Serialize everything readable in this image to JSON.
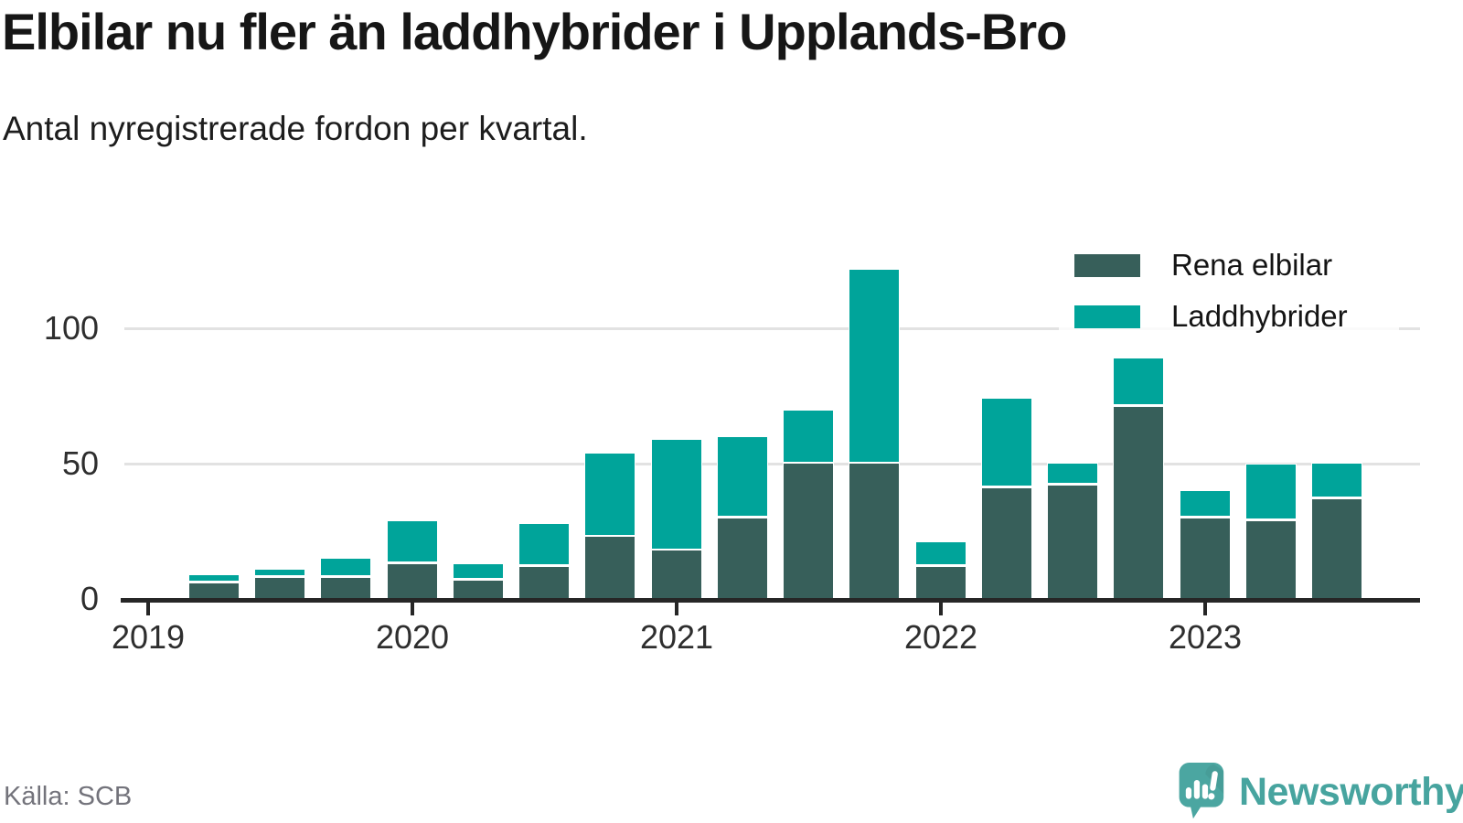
{
  "header": {
    "title": "Elbilar nu fler än laddhybrider i Upplands-Bro",
    "subtitle": "Antal nyregistrerade fordon per kvartal."
  },
  "legend": [
    {
      "label": "Rena elbilar",
      "color": "#375f5a"
    },
    {
      "label": "Laddhybrider",
      "color": "#00a49a"
    }
  ],
  "footer": {
    "source": "Källa: SCB",
    "brand": "Newsworthy"
  },
  "colors": {
    "elbilar": "#375f5a",
    "laddhybrider": "#00a49a",
    "axis": "#262626",
    "gridline": "#e2e2e2",
    "brand_teal": "#47a49f",
    "logo_bubble": "#4ba6a1"
  },
  "chart_data": {
    "type": "bar",
    "stacked": true,
    "title": "Elbilar nu fler än laddhybrider i Upplands-Bro",
    "subtitle": "Antal nyregistrerade fordon per kvartal.",
    "xlabel": "",
    "ylabel": "",
    "categories": [
      "2019 Q2",
      "2019 Q3",
      "2019 Q4",
      "2020 Q1",
      "2020 Q2",
      "2020 Q3",
      "2020 Q4",
      "2021 Q1",
      "2021 Q2",
      "2021 Q3",
      "2021 Q4",
      "2022 Q1",
      "2022 Q2",
      "2022 Q3",
      "2022 Q4",
      "2023 Q1",
      "2023 Q2",
      "2023 Q3"
    ],
    "series": [
      {
        "name": "Rena elbilar",
        "color": "#375f5a",
        "values": [
          6,
          8,
          8,
          13,
          7,
          12,
          23,
          18,
          30,
          50,
          50,
          12,
          41,
          42,
          71,
          30,
          29,
          37
        ]
      },
      {
        "name": "Laddhybrider",
        "color": "#00a49a",
        "values": [
          3,
          3,
          7,
          16,
          6,
          16,
          31,
          41,
          30,
          20,
          72,
          9,
          33,
          8,
          18,
          10,
          21,
          13
        ]
      }
    ],
    "x_tick_labels": [
      "2019",
      "2020",
      "2021",
      "2022",
      "2023"
    ],
    "y_ticks": [
      0,
      50,
      100
    ],
    "ylim": [
      0,
      130
    ],
    "grid": "horizontal",
    "legend_position": "top-right",
    "bar_stroke": "#ffffff"
  }
}
